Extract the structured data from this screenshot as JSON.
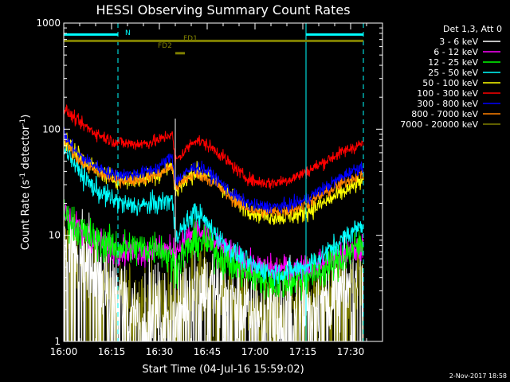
{
  "chart_data": {
    "type": "line",
    "title": "HESSI Observing Summary Count Rates",
    "xlabel": "Start Time (04-Jul-16 15:59:02)",
    "ylabel_main": "Count Rate (s",
    "ylabel_sup1": "-1",
    "ylabel_mid": " detector",
    "ylabel_sup2": "-1",
    "ylabel_end": ")",
    "y_scale": "log",
    "ylim": [
      1,
      1000
    ],
    "xlim_minutes": [
      0,
      100
    ],
    "x_ticks": [
      {
        "t": 0,
        "label": "16:00"
      },
      {
        "t": 15,
        "label": "16:15"
      },
      {
        "t": 30,
        "label": "16:30"
      },
      {
        "t": 45,
        "label": "16:45"
      },
      {
        "t": 60,
        "label": "17:00"
      },
      {
        "t": 75,
        "label": "17:15"
      },
      {
        "t": 90,
        "label": "17:30"
      }
    ],
    "y_ticks": [
      {
        "v": 1,
        "label": "1"
      },
      {
        "v": 10,
        "label": "10"
      },
      {
        "v": 100,
        "label": "100"
      },
      {
        "v": 1000,
        "label": "1000"
      }
    ],
    "legend_title": "Det 1,3, Att 0",
    "legend_position": "right",
    "timestamp": "2-Nov-2017 18:58",
    "annotations": [
      {
        "text": "N",
        "color": "#00ffff"
      },
      {
        "text": "FD1",
        "color": "#808000"
      },
      {
        "text": "FD2",
        "color": "#808000"
      }
    ],
    "markers": {
      "night_bars": [
        [
          0,
          17
        ],
        [
          76,
          94
        ]
      ],
      "flare_bar": [
        0,
        94
      ],
      "flare_bar_level": 680,
      "night_bar_level": 780,
      "fd2_segment": [
        35,
        38
      ],
      "fd2_level": 520,
      "dashed_times": [
        17,
        94
      ],
      "solid_times": [
        0,
        76
      ],
      "attenuator_time": 35
    },
    "series": [
      {
        "name": "3 - 6 keV",
        "color": "#ffffff",
        "t": [
          0,
          5,
          10,
          15,
          20,
          25,
          30,
          35,
          38,
          42,
          46,
          50,
          55,
          60,
          65,
          70,
          75,
          80,
          85,
          90,
          94
        ],
        "values": [
          12,
          7,
          5,
          3,
          2.5,
          2,
          2,
          2,
          3,
          4,
          3.5,
          3,
          2.2,
          2,
          2,
          2,
          2.2,
          2.5,
          3,
          3.5,
          4
        ],
        "noise": 0.9
      },
      {
        "name": "6 - 12 keV",
        "color": "#ff00ff",
        "t": [
          0,
          5,
          10,
          15,
          20,
          25,
          30,
          35,
          38,
          42,
          46,
          50,
          55,
          60,
          65,
          70,
          75,
          80,
          85,
          90,
          94
        ],
        "values": [
          17,
          11,
          9,
          7.5,
          7,
          7,
          7.5,
          7,
          9,
          11,
          9,
          7.5,
          6,
          5,
          4.8,
          4.8,
          5,
          5.2,
          6,
          7,
          7.5
        ],
        "noise": 0.15
      },
      {
        "name": "12 - 25 keV",
        "color": "#00ff00",
        "t": [
          0,
          5,
          10,
          15,
          20,
          25,
          30,
          35,
          38,
          42,
          46,
          50,
          55,
          60,
          65,
          70,
          75,
          80,
          85,
          90,
          94
        ],
        "values": [
          16,
          11,
          9,
          8,
          7.5,
          7.5,
          8,
          5,
          7,
          9,
          8,
          6,
          5,
          4,
          3.6,
          3.6,
          4,
          4.5,
          5.5,
          7,
          8.5
        ],
        "noise": 0.2
      },
      {
        "name": "25 - 50 keV",
        "color": "#00ffff",
        "t": [
          0,
          3,
          6,
          10,
          15,
          20,
          25,
          30,
          34,
          35,
          38,
          41,
          44,
          48,
          52,
          56,
          60,
          65,
          70,
          75,
          80,
          85,
          90,
          94
        ],
        "values": [
          72,
          50,
          36,
          27,
          22,
          19,
          19,
          20,
          22,
          10,
          12,
          17,
          14,
          10,
          7.5,
          6,
          5,
          4.5,
          4.5,
          5,
          6,
          8,
          10.5,
          13
        ],
        "noise": 0.12
      },
      {
        "name": "50 - 100 keV",
        "color": "#ffff00",
        "t": [
          0,
          5,
          10,
          15,
          20,
          25,
          30,
          34,
          35,
          38,
          41,
          44,
          48,
          52,
          56,
          60,
          65,
          70,
          75,
          80,
          85,
          90,
          94
        ],
        "values": [
          78,
          56,
          42,
          35,
          33,
          34,
          38,
          46,
          26,
          32,
          40,
          38,
          32,
          24,
          19,
          16.5,
          15,
          15,
          16,
          19,
          23,
          28,
          33
        ],
        "noise": 0.1
      },
      {
        "name": "100 - 300 keV",
        "color": "#ff0000",
        "t": [
          0,
          5,
          10,
          15,
          20,
          25,
          30,
          34,
          35,
          38,
          41,
          44,
          48,
          52,
          56,
          60,
          65,
          70,
          75,
          80,
          85,
          90,
          94
        ],
        "values": [
          155,
          115,
          92,
          78,
          73,
          73,
          79,
          92,
          50,
          62,
          80,
          74,
          62,
          48,
          37,
          32,
          31,
          33,
          38,
          46,
          56,
          66,
          74
        ],
        "noise": 0.07
      },
      {
        "name": "300 - 800 keV",
        "color": "#0000ff",
        "t": [
          0,
          5,
          10,
          15,
          20,
          25,
          30,
          34,
          35,
          38,
          41,
          44,
          48,
          52,
          56,
          60,
          65,
          70,
          75,
          80,
          85,
          90,
          94
        ],
        "values": [
          88,
          56,
          45,
          38,
          37,
          39,
          44,
          56,
          32,
          38,
          44,
          42,
          34,
          26,
          21,
          19,
          18.5,
          19,
          21,
          26,
          32,
          40,
          45
        ],
        "noise": 0.07
      },
      {
        "name": "800 - 7000 keV",
        "color": "#ff8000",
        "t": [
          0,
          5,
          10,
          15,
          20,
          25,
          30,
          34,
          35,
          38,
          41,
          44,
          48,
          52,
          56,
          60,
          65,
          70,
          75,
          80,
          85,
          90,
          94
        ],
        "values": [
          82,
          50,
          40,
          34,
          33,
          34,
          38,
          45,
          28,
          33,
          38,
          36,
          30,
          23,
          19,
          17,
          16.5,
          17,
          19,
          23,
          28,
          34,
          39
        ],
        "noise": 0.07
      },
      {
        "name": "7000 - 20000 keV",
        "color": "#808000",
        "t": [
          0,
          5,
          10,
          15,
          20,
          25,
          30,
          35,
          38,
          42,
          46,
          50,
          55,
          60,
          65,
          70,
          75,
          80,
          85,
          90,
          94
        ],
        "values": [
          10,
          5,
          4,
          3,
          2.6,
          2.4,
          2.4,
          2.2,
          3,
          4,
          3.5,
          2.8,
          2.4,
          2.2,
          2.2,
          2.2,
          2.4,
          2.6,
          3,
          3.5,
          4
        ],
        "noise": 0.8
      }
    ]
  }
}
